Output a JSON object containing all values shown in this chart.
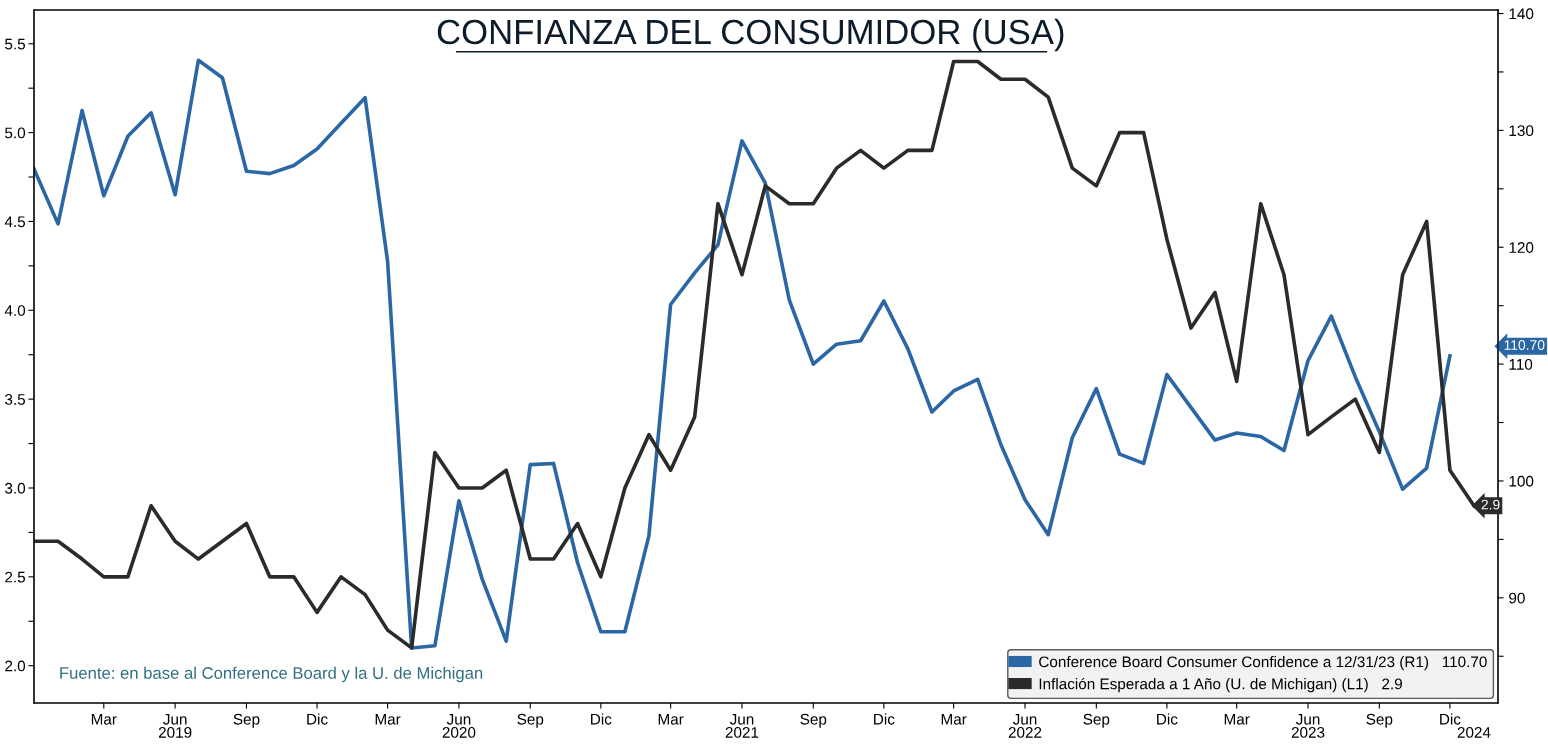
{
  "chart_data": {
    "type": "line",
    "title": "CONFIANZA DEL CONSUMIDOR (USA)",
    "x": [
      "2018-12",
      "2019-01",
      "2019-02",
      "2019-03",
      "2019-04",
      "2019-05",
      "2019-06",
      "2019-07",
      "2019-08",
      "2019-09",
      "2019-10",
      "2019-11",
      "2019-12",
      "2020-01",
      "2020-02",
      "2020-03",
      "2020-04",
      "2020-05",
      "2020-06",
      "2020-07",
      "2020-08",
      "2020-09",
      "2020-10",
      "2020-11",
      "2020-12",
      "2021-01",
      "2021-02",
      "2021-03",
      "2021-04",
      "2021-05",
      "2021-06",
      "2021-07",
      "2021-08",
      "2021-09",
      "2021-10",
      "2021-11",
      "2021-12",
      "2022-01",
      "2022-02",
      "2022-03",
      "2022-04",
      "2022-05",
      "2022-06",
      "2022-07",
      "2022-08",
      "2022-09",
      "2022-10",
      "2022-11",
      "2022-12",
      "2023-01",
      "2023-02",
      "2023-03",
      "2023-04",
      "2023-05",
      "2023-06",
      "2023-07",
      "2023-08",
      "2023-09",
      "2023-10",
      "2023-11",
      "2023-12",
      "2024-01"
    ],
    "series": [
      {
        "name": "Conference Board Consumer Confidence a 12/31/23 (R1)   110.70",
        "color": "#2c67a5",
        "axis": "y2",
        "values": [
          126.7,
          122.0,
          131.7,
          124.4,
          129.5,
          131.5,
          124.5,
          136.0,
          134.5,
          126.5,
          126.3,
          127.0,
          128.4,
          130.6,
          132.8,
          118.8,
          85.7,
          85.9,
          98.3,
          91.6,
          86.3,
          101.4,
          101.5,
          93.0,
          87.1,
          87.1,
          95.3,
          115.1,
          117.8,
          120.2,
          129.1,
          125.5,
          115.5,
          110.0,
          111.7,
          112.0,
          115.4,
          111.3,
          105.9,
          107.7,
          108.7,
          103.1,
          98.4,
          95.4,
          103.7,
          107.9,
          102.3,
          101.5,
          109.1,
          106.3,
          103.5,
          104.1,
          103.8,
          102.6,
          110.3,
          114.1,
          108.9,
          104.2,
          99.3,
          101.1,
          110.7,
          null
        ]
      },
      {
        "name": "Inflación Esperada a 1 Año (U. de Michigan) (L1)   2.9",
        "color": "#2b2b2b",
        "axis": "y",
        "values": [
          2.7,
          2.7,
          2.6,
          2.5,
          2.5,
          2.9,
          2.7,
          2.6,
          2.7,
          2.8,
          2.5,
          2.5,
          2.3,
          2.5,
          2.4,
          2.2,
          2.1,
          3.2,
          3.0,
          3.0,
          3.1,
          2.6,
          2.6,
          2.8,
          2.5,
          3.0,
          3.3,
          3.1,
          3.4,
          4.6,
          4.2,
          4.7,
          4.6,
          4.6,
          4.8,
          4.9,
          4.8,
          4.9,
          4.9,
          5.4,
          5.4,
          5.3,
          5.3,
          5.2,
          4.8,
          4.7,
          5.0,
          5.0,
          4.4,
          3.9,
          4.1,
          3.6,
          4.6,
          4.2,
          3.3,
          3.4,
          3.5,
          3.2,
          4.2,
          4.5,
          3.1,
          2.9
        ]
      }
    ],
    "xlim": [
      "2018-12",
      "2024-02"
    ],
    "xticks": [
      {
        "value": "2019-03",
        "label": "Mar"
      },
      {
        "value": "2019-06",
        "label": "Jun"
      },
      {
        "value": "2019-09",
        "label": "Sep"
      },
      {
        "value": "2019-12",
        "label": "Dic"
      },
      {
        "value": "2020-03",
        "label": "Mar"
      },
      {
        "value": "2020-06",
        "label": "Jun"
      },
      {
        "value": "2020-09",
        "label": "Sep"
      },
      {
        "value": "2020-12",
        "label": "Dic"
      },
      {
        "value": "2021-03",
        "label": "Mar"
      },
      {
        "value": "2021-06",
        "label": "Jun"
      },
      {
        "value": "2021-09",
        "label": "Sep"
      },
      {
        "value": "2021-12",
        "label": "Dic"
      },
      {
        "value": "2022-03",
        "label": "Mar"
      },
      {
        "value": "2022-06",
        "label": "Jun"
      },
      {
        "value": "2022-09",
        "label": "Sep"
      },
      {
        "value": "2022-12",
        "label": "Dic"
      },
      {
        "value": "2023-03",
        "label": "Mar"
      },
      {
        "value": "2023-06",
        "label": "Jun"
      },
      {
        "value": "2023-09",
        "label": "Sep"
      },
      {
        "value": "2023-12",
        "label": "Dic"
      }
    ],
    "x2lim": [
      "2018-12",
      "2024-02"
    ],
    "x2ticks": [
      {
        "value": "2019-06",
        "label": "2019"
      },
      {
        "value": "2020-06",
        "label": "2020"
      },
      {
        "value": "2021-06",
        "label": "2021"
      },
      {
        "value": "2022-06",
        "label": "2022"
      },
      {
        "value": "2023-06",
        "label": "2023"
      },
      {
        "value": "2024-01",
        "label": "2024"
      }
    ],
    "ylim": [
      1.79,
      5.69
    ],
    "yticks": [
      {
        "value": 2.0,
        "label": "2.0"
      },
      {
        "value": 2.25,
        "label": null
      },
      {
        "value": 2.5,
        "label": "2.5"
      },
      {
        "value": 2.75,
        "label": null
      },
      {
        "value": 3.0,
        "label": "3.0"
      },
      {
        "value": 3.25,
        "label": null
      },
      {
        "value": 3.5,
        "label": "3.5"
      },
      {
        "value": 3.75,
        "label": null
      },
      {
        "value": 4.0,
        "label": "4.0"
      },
      {
        "value": 4.25,
        "label": null
      },
      {
        "value": 4.5,
        "label": "4.5"
      },
      {
        "value": 4.75,
        "label": null
      },
      {
        "value": 5.0,
        "label": "5.0"
      },
      {
        "value": 5.25,
        "label": null
      },
      {
        "value": 5.5,
        "label": "5.5"
      }
    ],
    "y2lim": [
      81.0,
      140.3
    ],
    "y2ticks": [
      {
        "value": 85,
        "label": null
      },
      90,
      {
        "value": 95,
        "label": null
      },
      100,
      {
        "value": 105,
        "label": null
      },
      110,
      {
        "value": 115,
        "label": null
      },
      120,
      {
        "value": 125,
        "label": null
      },
      130,
      {
        "value": 135,
        "label": null
      },
      140
    ],
    "annotations": [
      {
        "text": "2.9",
        "x": "2024-01",
        "y": 2.9
      },
      "110.70",
      "Fuente: en base al Conference Board y la U. de Michigan"
    ],
    "grid": false,
    "legend": "bottom right",
    "line_style": "solid",
    "marker": "none"
  }
}
